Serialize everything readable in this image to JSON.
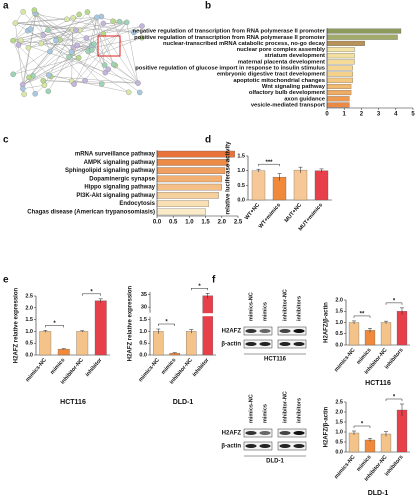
{
  "chart_data": [
    {
      "type": "network",
      "panel": "a"
    },
    {
      "type": "hbar",
      "panel": "b",
      "categories": [
        "negative regulation of transcription from RNA polymerase II promoter",
        "positive regulation of transcription from RNA polymerase II promoter",
        "nuclear-transcribed mRNA catabolic process, no-go decay",
        "nuclear pore complex assembly",
        "striatum development",
        "maternal placenta development",
        "positive regulation of glucose import in response to insulin stimulus",
        "embryonic digestive tract development",
        "apoptotic mitochondrial changes",
        "Wnt signaling pathway",
        "olfactory bulb development",
        "axon guidance",
        "vesicle-mediated transport"
      ],
      "values": [
        4.3,
        4.1,
        2.2,
        1.6,
        1.6,
        1.6,
        1.5,
        1.5,
        1.5,
        1.4,
        1.4,
        1.3,
        1.3
      ],
      "colors": [
        "#8c9a5b",
        "#a3ab6a",
        "#b7935a",
        "#f3e3a6",
        "#f3e0a0",
        "#f4dc98",
        "#f4d690",
        "#f4d088",
        "#f4c880",
        "#f2bb72",
        "#f0ac64",
        "#ee9a52",
        "#ea8a44"
      ],
      "xlim": [
        0,
        5
      ],
      "xticks": [
        0,
        1,
        2,
        3,
        4,
        5
      ]
    },
    {
      "type": "hbar",
      "panel": "c",
      "categories": [
        "mRNA surveillance pathway",
        "AMPK signaling pathway",
        "Sphingolipid signaling pathway",
        "Dopaminergic synapse",
        "Hippo signaling pathway",
        "PI3K-Akt signaling pathway",
        "Endocytosis",
        "Chagas disease (American trypanosomiasis)"
      ],
      "values": [
        2.4,
        2.2,
        2.1,
        2.0,
        2.0,
        1.9,
        1.6,
        1.5
      ],
      "colors": [
        "#e8733a",
        "#ec8a48",
        "#f0a060",
        "#f2b072",
        "#f4c088",
        "#f6d09c",
        "#f8e0b4",
        "#faecc8"
      ],
      "xlim": [
        0,
        2.5
      ],
      "xticks": [
        {
          "value": 0,
          "label": "0.0"
        },
        0.5,
        {
          "value": 1,
          "label": "1.0"
        },
        1.5,
        {
          "value": 2,
          "label": "2.0"
        },
        2.5
      ]
    },
    {
      "type": "vbar",
      "panel": "d",
      "ylabel": "relative luciferase activity",
      "categories": [
        "WT+NC",
        "WT+mimics",
        "MUT+NC",
        "MUT+mimics"
      ],
      "values": [
        1.0,
        0.78,
        1.02,
        1.0
      ],
      "errors": [
        0.05,
        0.12,
        0.1,
        0.06
      ],
      "colors": [
        "#f6c897",
        "#f08a3a",
        "#f6c897",
        "#e8404a"
      ],
      "ylim": [
        0,
        1.5
      ],
      "yticks": [
        {
          "value": 0,
          "label": "0.0"
        },
        0.5,
        {
          "value": 1,
          "label": "1.0"
        },
        1.5
      ],
      "annotations": [
        "***"
      ]
    },
    {
      "type": "vbar",
      "panel": "e",
      "ylabel": "H2AFZ relative expression",
      "xlabel": "HCT116",
      "categories": [
        "mimics-NC",
        "mimics",
        "inhibitor-NC",
        "inhibitor"
      ],
      "values": [
        1.0,
        0.25,
        1.0,
        2.3
      ],
      "errors": [
        0.04,
        0.02,
        0.03,
        0.08
      ],
      "colors": [
        "#f3c38a",
        "#f08a3a",
        "#f3c38a",
        "#e8404a"
      ],
      "ylim": [
        0,
        2.5
      ],
      "yticks": [
        {
          "value": 0,
          "label": "0.0"
        },
        0.5,
        {
          "value": 1,
          "label": "1.0"
        },
        1.5,
        {
          "value": 2,
          "label": "2.0"
        },
        2.5
      ],
      "annotations": [
        "*",
        "*"
      ]
    },
    {
      "type": "vbar",
      "ylabel": "H2AFZ relative expression",
      "xlabel": "DLD-1",
      "categories": [
        "mimics-NC",
        "mimics",
        "inhibitor-NC",
        "inhibitor"
      ],
      "values": [
        1.0,
        0.08,
        1.0,
        34.5
      ],
      "errors": [
        0.1,
        0.02,
        0.08,
        1.0
      ],
      "colors": [
        "#f3c38a",
        "#f08a3a",
        "#f3c38a",
        "#e8404a"
      ],
      "ylim": [
        0,
        36
      ],
      "ybreak": [
        1.6,
        28
      ],
      "yticks": [
        {
          "value": 0,
          "label": "0.0"
        },
        0.5,
        {
          "value": 1,
          "label": "1.0"
        },
        1.5,
        30,
        35
      ],
      "annotations": [
        "*",
        "*"
      ]
    },
    {
      "type": "vbar",
      "panel": "f",
      "ylabel": "H2AFZ/β-actin",
      "xlabel": "HCT116",
      "categories": [
        "mimics-NC",
        "mimics",
        "inhibitor-NC",
        "inhibitors"
      ],
      "values": [
        1.0,
        0.65,
        1.0,
        1.5
      ],
      "errors": [
        0.07,
        0.09,
        0.06,
        0.15
      ],
      "colors": [
        "#f3c38a",
        "#f08a3a",
        "#f3c38a",
        "#e8404a"
      ],
      "ylim": [
        0,
        2
      ],
      "yticks": [
        {
          "value": 0,
          "label": "0.0"
        },
        0.5,
        {
          "value": 1,
          "label": "1.0"
        },
        1.5,
        {
          "value": 2,
          "label": "2.0"
        }
      ],
      "annotations": [
        "**",
        "*"
      ]
    },
    {
      "type": "vbar",
      "ylabel": "H2AFZ/β-actin",
      "xlabel": "DLD-1",
      "categories": [
        "mimics-NC",
        "mimics",
        "inhibitor-NC",
        "inhibitors"
      ],
      "values": [
        0.95,
        0.6,
        0.9,
        2.1
      ],
      "errors": [
        0.1,
        0.08,
        0.12,
        0.3
      ],
      "colors": [
        "#f3c38a",
        "#f08a3a",
        "#f3c38a",
        "#e8404a"
      ],
      "ylim": [
        0,
        2.5
      ],
      "yticks": [
        {
          "value": 0,
          "label": "0.0"
        },
        0.5,
        {
          "value": 1,
          "label": "1.0"
        },
        1.5,
        {
          "value": 2,
          "label": "2.0"
        },
        2.5
      ],
      "annotations": [
        "*",
        "*"
      ]
    }
  ],
  "blots": [
    {
      "title": "HCT116",
      "rows": [
        "H2AFZ",
        "β-actin"
      ],
      "lanes": [
        "mimics-NC",
        "mimics",
        "inhibitor-NC",
        "inhibitors"
      ]
    },
    {
      "title": "DLD-1",
      "rows": [
        "H2AFZ",
        "β-actin"
      ],
      "lanes": [
        "mimics-NC",
        "mimics",
        "inhibitor-NC",
        "inhibitors"
      ]
    }
  ]
}
